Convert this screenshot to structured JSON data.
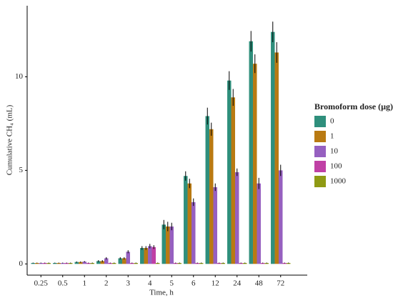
{
  "chart_data": {
    "type": "bar",
    "x_label": "Time, h",
    "y_label": "Cumulative CH₄ (mL)",
    "legend_title": "Bromoform dose (µg)",
    "legend_position": "right",
    "categories": [
      "0.25",
      "0.5",
      "1",
      "2",
      "3",
      "4",
      "5",
      "6",
      "12",
      "24",
      "48",
      "72"
    ],
    "ylim": [
      -0.6,
      13.8
    ],
    "yticks": [
      0,
      5,
      10
    ],
    "series": [
      {
        "name": "0",
        "color": "#2f8f7c",
        "values": [
          0.05,
          0.05,
          0.1,
          0.15,
          0.3,
          0.85,
          2.1,
          4.7,
          7.9,
          9.8,
          11.9,
          12.4
        ],
        "errors": [
          0.02,
          0.02,
          0.03,
          0.05,
          0.06,
          0.1,
          0.25,
          0.25,
          0.45,
          0.5,
          0.55,
          0.55
        ]
      },
      {
        "name": "1",
        "color": "#b97a12",
        "values": [
          0.05,
          0.05,
          0.1,
          0.15,
          0.3,
          0.85,
          2.0,
          4.3,
          7.2,
          8.9,
          10.7,
          11.3
        ],
        "errors": [
          0.02,
          0.02,
          0.03,
          0.05,
          0.06,
          0.1,
          0.25,
          0.25,
          0.35,
          0.45,
          0.5,
          0.55
        ]
      },
      {
        "name": "10",
        "color": "#9660c0",
        "values": [
          0.05,
          0.05,
          0.12,
          0.3,
          0.65,
          0.95,
          2.0,
          3.3,
          4.1,
          4.9,
          4.3,
          5.0
        ],
        "errors": [
          0.02,
          0.02,
          0.03,
          0.06,
          0.08,
          0.12,
          0.2,
          0.2,
          0.2,
          0.2,
          0.3,
          0.3
        ]
      },
      {
        "name": "100",
        "color": "#c040a5",
        "values": [
          0.05,
          0.05,
          0.05,
          0.05,
          0.05,
          0.9,
          0.05,
          0.05,
          0.05,
          0.05,
          0.05,
          0.05
        ],
        "errors": [
          0.02,
          0.02,
          0.02,
          0.02,
          0.02,
          0.1,
          0.02,
          0.02,
          0.02,
          0.02,
          0.02,
          0.02
        ]
      },
      {
        "name": "1000",
        "color": "#8f9a14",
        "values": [
          0.05,
          0.05,
          0.05,
          0.05,
          0.05,
          0.05,
          0.05,
          0.05,
          0.05,
          0.05,
          0.05,
          0.05
        ],
        "errors": [
          0.02,
          0.02,
          0.02,
          0.02,
          0.02,
          0.02,
          0.02,
          0.02,
          0.02,
          0.02,
          0.02,
          0.02
        ]
      }
    ]
  }
}
